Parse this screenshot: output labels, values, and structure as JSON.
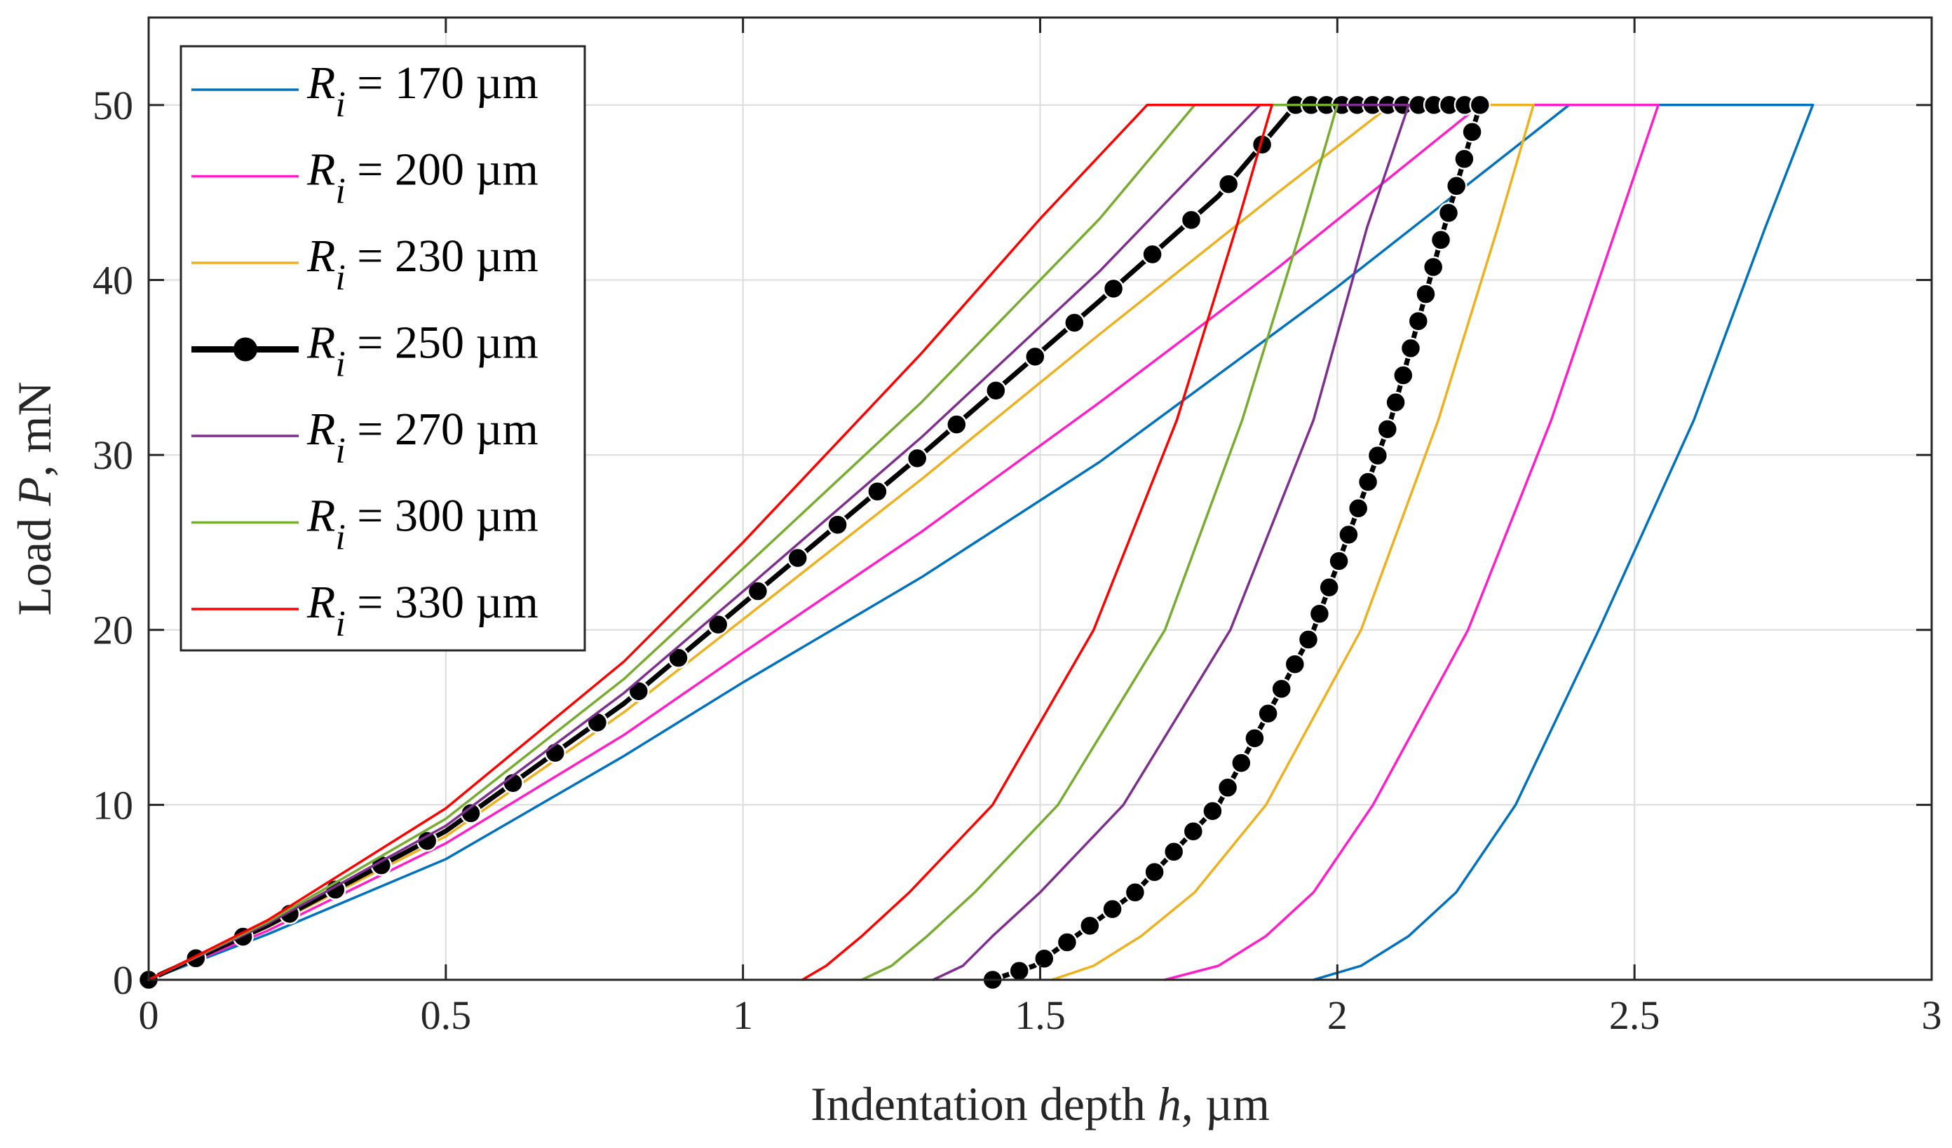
{
  "chart_data": {
    "type": "line",
    "title": "",
    "xlabel": {
      "text": "Indentation depth ",
      "var": "h",
      "unit": ", µm"
    },
    "ylabel": {
      "text": "Load ",
      "var": "P",
      "unit": ", mN"
    },
    "xlim": [
      0,
      3
    ],
    "ylim": [
      0,
      55
    ],
    "xticks": [
      0,
      0.5,
      1,
      1.5,
      2,
      2.5,
      3
    ],
    "xtick_labels": [
      "0",
      "0.5",
      "1",
      "1.5",
      "2",
      "2.5",
      "3"
    ],
    "yticks": [
      0,
      10,
      20,
      30,
      40,
      50
    ],
    "ytick_labels": [
      "0",
      "10",
      "20",
      "30",
      "40",
      "50"
    ],
    "grid": true,
    "legend_position": "top-left",
    "series": [
      {
        "name": "R_i = 170 µm",
        "sym": "R",
        "sub": "i",
        "rest": " = 170 µm",
        "color": "#0072BD",
        "markers": false,
        "loading": {
          "x": [
            0,
            0.2,
            0.5,
            0.8,
            1.0,
            1.3,
            1.6,
            2.0,
            2.39
          ],
          "y": [
            0,
            2.6,
            6.9,
            12.8,
            17.0,
            23.0,
            29.6,
            39.6,
            50
          ]
        },
        "hold": {
          "x": [
            2.39,
            2.8
          ],
          "y": [
            50,
            50
          ]
        },
        "unloading": {
          "x": [
            2.8,
            2.72,
            2.6,
            2.44,
            2.3,
            2.2,
            2.12,
            2.04,
            1.96
          ],
          "y": [
            50,
            43,
            32,
            20,
            10,
            5,
            2.5,
            0.8,
            0
          ]
        }
      },
      {
        "name": "R_i = 200 µm",
        "sym": "R",
        "sub": "i",
        "rest": " = 200 µm",
        "color": "#FF1FC8",
        "markers": false,
        "loading": {
          "x": [
            0,
            0.2,
            0.5,
            0.8,
            1.0,
            1.3,
            1.6,
            1.9,
            2.24
          ],
          "y": [
            0,
            2.8,
            7.8,
            14.0,
            18.7,
            25.6,
            33.0,
            40.7,
            50
          ]
        },
        "hold": {
          "x": [
            2.24,
            2.54
          ],
          "y": [
            50,
            50
          ]
        },
        "unloading": {
          "x": [
            2.54,
            2.47,
            2.36,
            2.22,
            2.06,
            1.96,
            1.88,
            1.8,
            1.71
          ],
          "y": [
            50,
            43,
            32,
            20,
            10,
            5,
            2.5,
            0.8,
            0
          ]
        }
      },
      {
        "name": "R_i = 230 µm",
        "sym": "R",
        "sub": "i",
        "rest": " = 230 µm",
        "color": "#EDB120",
        "markers": false,
        "loading": {
          "x": [
            0,
            0.2,
            0.5,
            0.8,
            1.0,
            1.3,
            1.6,
            1.9,
            2.09
          ],
          "y": [
            0,
            3.0,
            8.2,
            15.3,
            20.6,
            28.6,
            36.9,
            45.0,
            50
          ]
        },
        "hold": {
          "x": [
            2.09,
            2.33
          ],
          "y": [
            50,
            50
          ]
        },
        "unloading": {
          "x": [
            2.33,
            2.27,
            2.17,
            2.04,
            1.88,
            1.76,
            1.67,
            1.59,
            1.52
          ],
          "y": [
            50,
            43,
            32,
            20,
            10,
            5,
            2.5,
            0.8,
            0
          ]
        }
      },
      {
        "name": "R_i = 250 µm",
        "sym": "R",
        "sub": "i",
        "rest": " = 250 µm",
        "color": "#000000",
        "markers": true,
        "loading": {
          "x": [
            0,
            0.2,
            0.5,
            0.8,
            1.0,
            1.3,
            1.6,
            1.8,
            1.93
          ],
          "y": [
            0,
            3.1,
            8.5,
            15.8,
            21.5,
            30.0,
            38.8,
            44.8,
            50
          ]
        },
        "hold": {
          "x": [
            1.93,
            2.24
          ],
          "y": [
            50,
            50
          ]
        },
        "unloading": {
          "x": [
            2.24,
            2.18,
            2.09,
            1.96,
            1.8,
            1.66,
            1.56,
            1.49,
            1.42
          ],
          "y": [
            50,
            43,
            32,
            20,
            10,
            5,
            2.5,
            0.8,
            0
          ]
        }
      },
      {
        "name": "R_i = 270 µm",
        "sym": "R",
        "sub": "i",
        "rest": " = 270 µm",
        "color": "#7E2F8E",
        "markers": false,
        "loading": {
          "x": [
            0,
            0.2,
            0.5,
            0.8,
            1.0,
            1.3,
            1.6,
            1.87
          ],
          "y": [
            0,
            3.2,
            8.8,
            16.4,
            22.2,
            31.0,
            40.5,
            50
          ]
        },
        "hold": {
          "x": [
            1.87,
            2.12
          ],
          "y": [
            50,
            50
          ]
        },
        "unloading": {
          "x": [
            2.12,
            2.05,
            1.96,
            1.82,
            1.64,
            1.5,
            1.42,
            1.37,
            1.32
          ],
          "y": [
            50,
            43,
            32,
            20,
            10,
            5,
            2.5,
            0.8,
            0
          ]
        }
      },
      {
        "name": "R_i = 300 µm",
        "sym": "R",
        "sub": "i",
        "rest": " = 300 µm",
        "color": "#77AC30",
        "markers": false,
        "loading": {
          "x": [
            0,
            0.2,
            0.5,
            0.8,
            1.0,
            1.3,
            1.6,
            1.76
          ],
          "y": [
            0,
            3.3,
            9.2,
            17.2,
            23.5,
            33.0,
            43.5,
            50
          ]
        },
        "hold": {
          "x": [
            1.76,
            2.0
          ],
          "y": [
            50,
            50
          ]
        },
        "unloading": {
          "x": [
            2.0,
            1.94,
            1.84,
            1.71,
            1.53,
            1.39,
            1.31,
            1.25,
            1.2
          ],
          "y": [
            50,
            43,
            32,
            20,
            10,
            5,
            2.5,
            0.8,
            0
          ]
        }
      },
      {
        "name": "R_i = 330 µm",
        "sym": "R",
        "sub": "i",
        "rest": " = 330 µm",
        "color": "#FF0000",
        "markers": false,
        "loading": {
          "x": [
            0,
            0.2,
            0.5,
            0.8,
            1.0,
            1.3,
            1.5,
            1.68
          ],
          "y": [
            0,
            3.4,
            9.8,
            18.2,
            25.0,
            35.8,
            43.5,
            50
          ]
        },
        "hold": {
          "x": [
            1.68,
            1.89
          ],
          "y": [
            50,
            50
          ]
        },
        "unloading": {
          "x": [
            1.89,
            1.83,
            1.73,
            1.59,
            1.42,
            1.28,
            1.2,
            1.14,
            1.1
          ],
          "y": [
            50,
            43,
            32,
            20,
            10,
            5,
            2.5,
            0.8,
            0
          ]
        }
      }
    ]
  }
}
